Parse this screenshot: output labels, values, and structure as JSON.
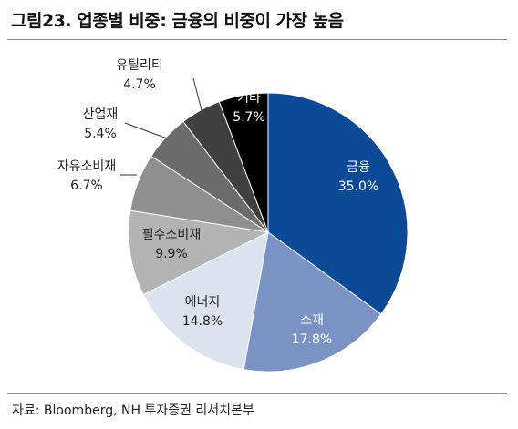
{
  "figure": {
    "title": "그림23. 업종별 비중: 금융의 비중이 가장 높음",
    "source": "자료: Bloomberg, NH 투자증권 리서치본부"
  },
  "chart_data": {
    "type": "pie",
    "title": "",
    "start_angle_deg": 0,
    "direction": "clockwise",
    "slices": [
      {
        "label": "금융",
        "value": 35.0,
        "value_text": "35.0%",
        "color": "#0b4a96",
        "text_color": "#ffffff"
      },
      {
        "label": "소재",
        "value": 17.8,
        "value_text": "17.8%",
        "color": "#7a93c4",
        "text_color": "#ffffff"
      },
      {
        "label": "에너지",
        "value": 14.8,
        "value_text": "14.8%",
        "color": "#dde3ee",
        "text_color": "#222222"
      },
      {
        "label": "필수소비재",
        "value": 9.9,
        "value_text": "9.9%",
        "color": "#b3b3b3",
        "text_color": "#222222"
      },
      {
        "label": "자유소비재",
        "value": 6.7,
        "value_text": "6.7%",
        "color": "#8f8f8f",
        "text_color": "#222222"
      },
      {
        "label": "산업재",
        "value": 5.4,
        "value_text": "5.4%",
        "color": "#6b6b6b",
        "text_color": "#222222"
      },
      {
        "label": "유틸리티",
        "value": 4.7,
        "value_text": "4.7%",
        "color": "#404040",
        "text_color": "#222222"
      },
      {
        "label": "기타",
        "value": 5.7,
        "value_text": "5.7%",
        "color": "#000000",
        "text_color": "#ffffff"
      }
    ]
  }
}
